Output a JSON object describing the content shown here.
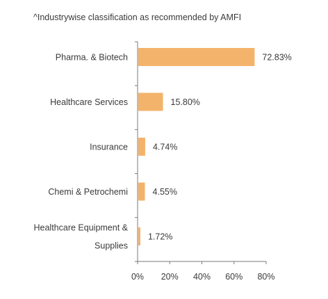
{
  "note": "^Industrywise classification as recommended by AMFI",
  "chart_data": {
    "type": "bar",
    "orientation": "horizontal",
    "categories": [
      [
        "Pharma. & Biotech"
      ],
      [
        "Healthcare Services"
      ],
      [
        "Insurance"
      ],
      [
        "Chemi & Petrochemi"
      ],
      [
        "Healthcare Equipment &",
        "Supplies"
      ]
    ],
    "values": [
      72.83,
      15.8,
      4.74,
      4.55,
      1.72
    ],
    "value_labels": [
      "72.83%",
      "15.80%",
      "4.74%",
      "4.55%",
      "1.72%"
    ],
    "xlim": [
      0,
      80
    ],
    "xticks": [
      0,
      20,
      40,
      60,
      80
    ],
    "xtick_labels": [
      "0%",
      "20%",
      "40%",
      "60%",
      "80%"
    ],
    "bar_color": "#f3b36b",
    "axis_color": "#7a7a7a",
    "grid": false
  }
}
